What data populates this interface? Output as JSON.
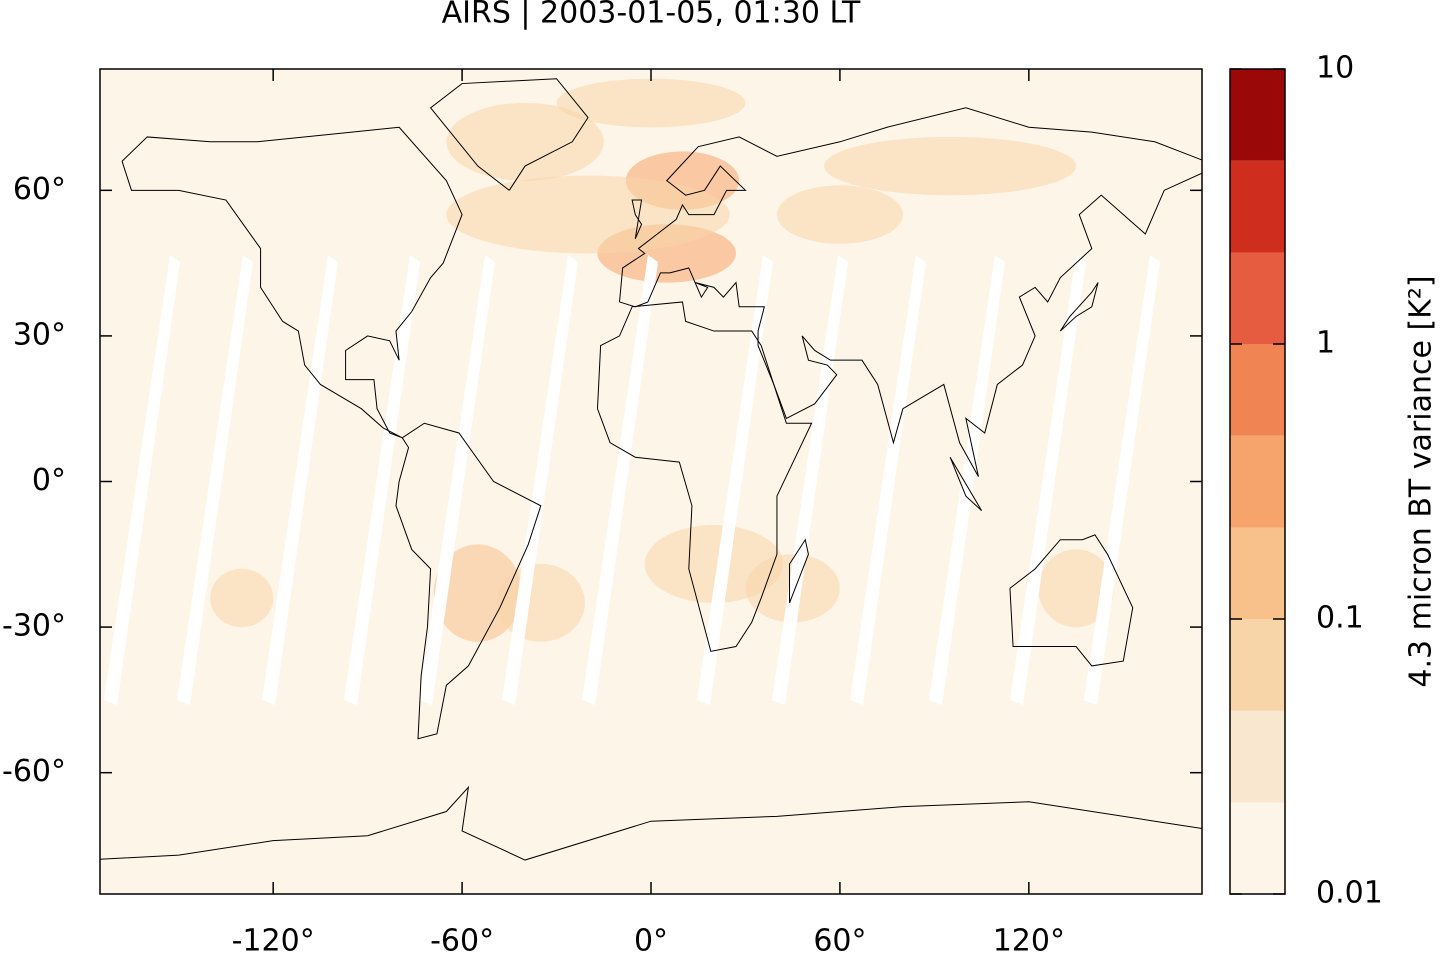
{
  "chart_data": {
    "type": "map",
    "title": "AIRS | 2003-01-05, 01:30 LT",
    "xlim": [
      -175,
      175
    ],
    "ylim": [
      -85,
      85
    ],
    "xticks": [
      {
        "value": -120,
        "label": "-120°"
      },
      {
        "value": -60,
        "label": "-60°"
      },
      {
        "value": 0,
        "label": "0°"
      },
      {
        "value": 60,
        "label": "60°"
      },
      {
        "value": 120,
        "label": "120°"
      }
    ],
    "yticks": [
      {
        "value": -60,
        "label": "-60°"
      },
      {
        "value": -30,
        "label": "-30°"
      },
      {
        "value": 0,
        "label": "0°"
      },
      {
        "value": 30,
        "label": "30°"
      },
      {
        "value": 60,
        "label": "60°"
      }
    ],
    "colorbar": {
      "label": "4.3 micron BT variance [K²]",
      "scale": "log",
      "lim": [
        0.01,
        10
      ],
      "levels": [
        0.01,
        0.0215,
        0.0464,
        0.1,
        0.215,
        0.464,
        1,
        2.15,
        4.64,
        10
      ],
      "colors": [
        "#fef5e9",
        "#f9e8cf",
        "#f8d5a8",
        "#f8c08a",
        "#f6a46c",
        "#f08553",
        "#e65c40",
        "#cf2e1f",
        "#9a0808"
      ],
      "ticks": [
        0.01,
        0.1,
        1,
        10
      ]
    }
  }
}
